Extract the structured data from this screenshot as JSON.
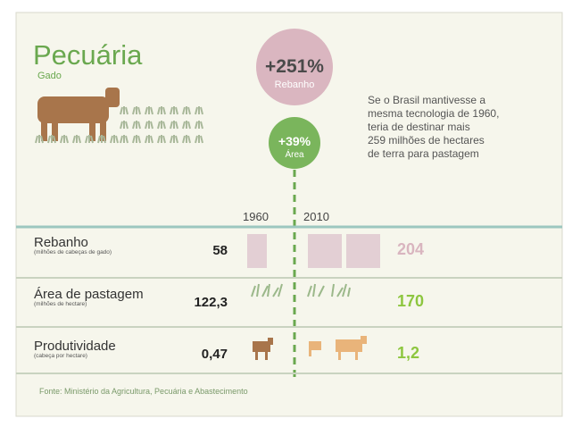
{
  "header": {
    "title": "Pecuária",
    "subtitle": "Gado"
  },
  "bubbles": [
    {
      "value": "+251%",
      "label": "Rebanho"
    },
    {
      "value": "+39%",
      "label": "Área"
    }
  ],
  "note": [
    "Se o Brasil mantivesse a",
    "mesma tecnologia de 1960,",
    "teria de destinar mais",
    "259 milhões de hectares",
    "de terra para pastagem"
  ],
  "years": [
    "1960",
    "2010"
  ],
  "rows": [
    {
      "label": "Rebanho",
      "unit": "(milhões de cabeças de gado)",
      "v1960": "58",
      "v2010": "204"
    },
    {
      "label": "Área de pastagem",
      "unit": "(milhões de hectare)",
      "v1960": "122,3",
      "v2010": "170"
    },
    {
      "label": "Produtividade",
      "unit": "(cabeça por hectare)",
      "v1960": "0,47",
      "v2010": "1,2"
    }
  ],
  "source": "Fonte: Ministério da Agricultura, Pecuária e Abastecimento"
}
